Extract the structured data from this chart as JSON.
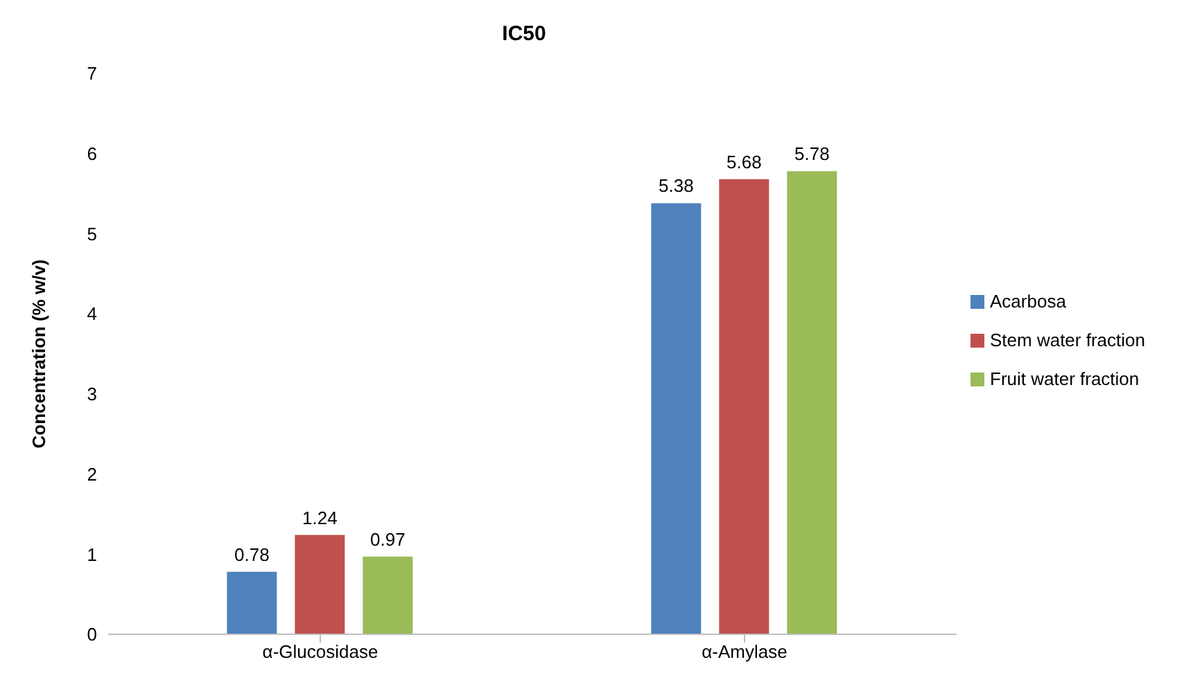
{
  "chart_data": {
    "type": "bar",
    "title": "IC50",
    "ylabel": "Concentration (% w/v)",
    "categories": [
      "α-Glucosidase",
      "α-Amylase"
    ],
    "series": [
      {
        "name": "Acarbosa",
        "color": "#4f81bd",
        "values": [
          0.78,
          5.38
        ]
      },
      {
        "name": "Stem water fraction",
        "color": "#c0504d",
        "values": [
          1.24,
          5.68
        ]
      },
      {
        "name": "Fruit water fraction",
        "color": "#9bbb59",
        "values": [
          0.97,
          5.78
        ]
      }
    ],
    "ylim": [
      0,
      7
    ],
    "yticks": [
      0,
      1,
      2,
      3,
      4,
      5,
      6,
      7
    ],
    "grid": false,
    "legend": "right",
    "data_labels": true
  }
}
